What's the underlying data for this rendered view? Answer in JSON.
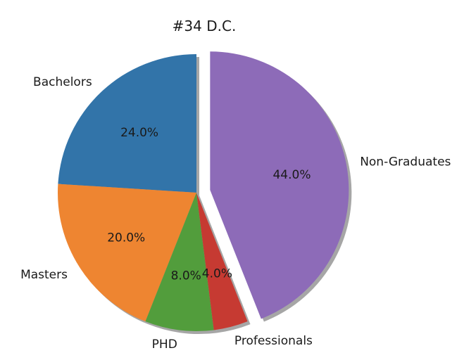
{
  "chart_data": {
    "type": "pie",
    "title": "#34 D.C.",
    "shadow": true,
    "start_angle_deg": 90,
    "direction": "counterclockwise",
    "slices": [
      {
        "label": "Bachelors",
        "value": 24.0,
        "pct_label": "24.0%",
        "color": "#3274a9",
        "explode": 0.0
      },
      {
        "label": "Masters",
        "value": 20.0,
        "pct_label": "20.0%",
        "color": "#ee8531",
        "explode": 0.0
      },
      {
        "label": "PHD",
        "value": 8.0,
        "pct_label": "8.0%",
        "color": "#529d3c",
        "explode": 0.0
      },
      {
        "label": "Professionals",
        "value": 4.0,
        "pct_label": "4.0%",
        "color": "#c63a32",
        "explode": 0.0
      },
      {
        "label": "Non-Graduates",
        "value": 44.0,
        "pct_label": "44.0%",
        "color": "#8d6bb8",
        "explode": 0.1
      }
    ]
  }
}
